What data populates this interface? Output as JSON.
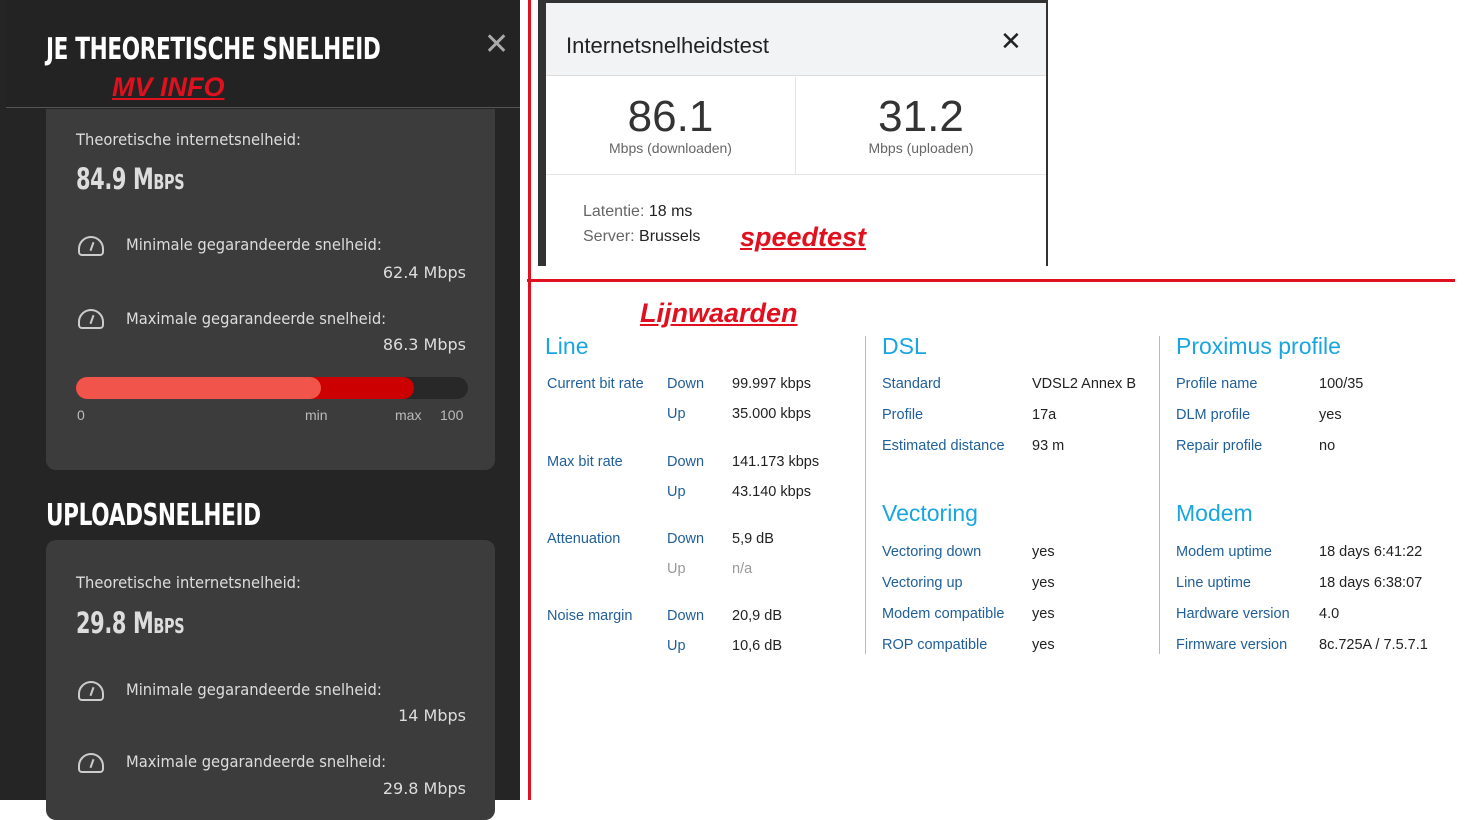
{
  "mv_info": {
    "title": "JE THEORETISCHE SNELHEID",
    "annotation": "MV INFO",
    "download": {
      "label": "Theoretische internetsnelheid:",
      "value": "84.9",
      "unit": "Mbps",
      "min_label": "Minimale gegarandeerde snelheid:",
      "min_value": "62.4 Mbps",
      "max_label": "Maximale gegarandeerde snelheid:",
      "max_value": "86.3 Mbps",
      "bar": {
        "min_percent": 62.4,
        "max_percent": 86.3,
        "tick_0": "0",
        "tick_min": "min",
        "tick_max": "max",
        "tick_100": "100"
      }
    },
    "upload_title": "UPLOADSNELHEID",
    "upload": {
      "label": "Theoretische internetsnelheid:",
      "value": "29.8",
      "unit": "Mbps",
      "min_label": "Minimale gegarandeerde snelheid:",
      "min_value": "14 Mbps",
      "max_label": "Maximale gegarandeerde snelheid:",
      "max_value": "29.8 Mbps"
    }
  },
  "speedtest": {
    "title": "Internetsnelheidstest",
    "download": "86.1",
    "download_unit": "Mbps (downloaden)",
    "upload": "31.2",
    "upload_unit": "Mbps (uploaden)",
    "latency_label": "Latentie:",
    "latency": "18 ms",
    "server_label": "Server:",
    "server": "Brussels",
    "annotation": "speedtest"
  },
  "line_values": {
    "annotation": "Lijnwaarden",
    "line": {
      "title": "Line",
      "rows": [
        {
          "key": "Current bit rate",
          "dir": "Down",
          "value": "99.997 kbps"
        },
        {
          "key": "",
          "dir": "Up",
          "value": "35.000 kbps"
        },
        {
          "key": "Max bit rate",
          "dir": "Down",
          "value": "141.173 kbps"
        },
        {
          "key": "",
          "dir": "Up",
          "value": "43.140 kbps"
        },
        {
          "key": "Attenuation",
          "dir": "Down",
          "value": "5,9 dB"
        },
        {
          "key": "",
          "dir": "Up",
          "value": "n/a"
        },
        {
          "key": "Noise margin",
          "dir": "Down",
          "value": "20,9 dB"
        },
        {
          "key": "",
          "dir": "Up",
          "value": "10,6 dB"
        }
      ]
    },
    "dsl": {
      "title": "DSL",
      "rows": [
        {
          "key": "Standard",
          "value": "VDSL2 Annex B"
        },
        {
          "key": "Profile",
          "value": "17a"
        },
        {
          "key": "Estimated distance",
          "value": "93 m"
        }
      ]
    },
    "vectoring": {
      "title": "Vectoring",
      "rows": [
        {
          "key": "Vectoring down",
          "value": "yes"
        },
        {
          "key": "Vectoring up",
          "value": "yes"
        },
        {
          "key": "Modem compatible",
          "value": "yes"
        },
        {
          "key": "ROP compatible",
          "value": "yes"
        }
      ]
    },
    "proximus": {
      "title": "Proximus profile",
      "rows": [
        {
          "key": "Profile name",
          "value": "100/35"
        },
        {
          "key": "DLM profile",
          "value": "yes"
        },
        {
          "key": "Repair profile",
          "value": "no"
        }
      ]
    },
    "modem": {
      "title": "Modem",
      "rows": [
        {
          "key": "Modem uptime",
          "value": "18 days 6:41:22"
        },
        {
          "key": "Line uptime",
          "value": "18 days 6:38:07"
        },
        {
          "key": "Hardware version",
          "value": "4.0"
        },
        {
          "key": "Firmware version",
          "value": "8c.725A / 7.5.7.1"
        }
      ]
    }
  },
  "colors": {
    "annotation_red": "#e0101e",
    "bar_min": "#f0544a",
    "bar_max": "#cc0000",
    "heading_blue": "#19a6e0"
  }
}
